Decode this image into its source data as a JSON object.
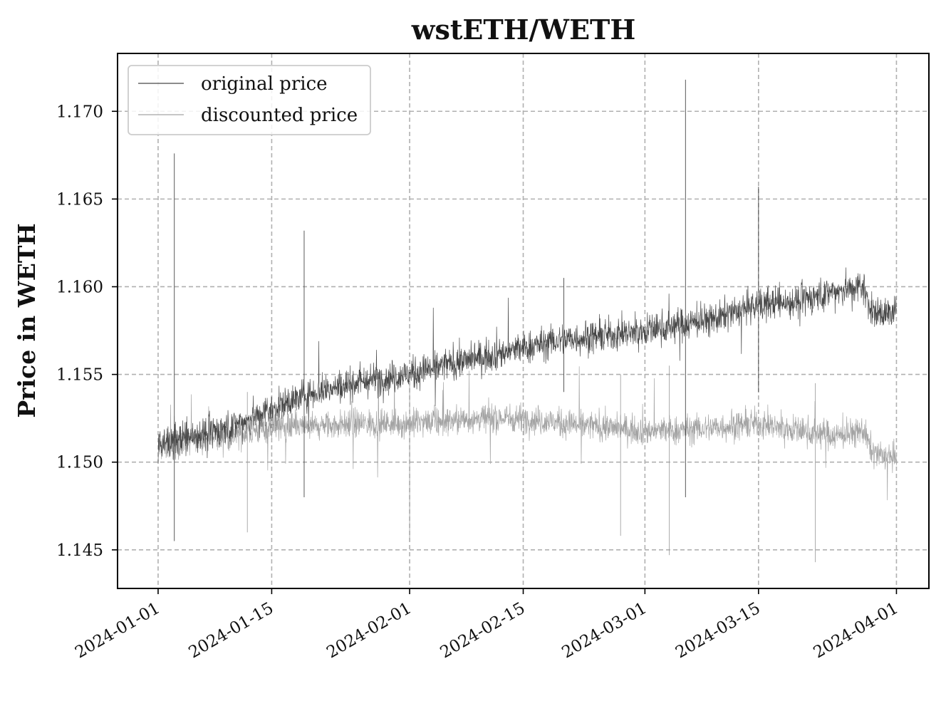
{
  "chart_data": {
    "type": "line",
    "title": "wstETH/WETH",
    "xlabel": "",
    "ylabel": "Price in WETH",
    "x_ticks": [
      "2024-01-01",
      "2024-01-15",
      "2024-02-01",
      "2024-02-15",
      "2024-03-01",
      "2024-03-15",
      "2024-04-01"
    ],
    "y_ticks": [
      "1.145",
      "1.150",
      "1.155",
      "1.160",
      "1.165",
      "1.170"
    ],
    "xlim": [
      "2023-12-27",
      "2024-04-05"
    ],
    "ylim": [
      1.1428,
      1.1733
    ],
    "grid": true,
    "legend_position": "upper-left",
    "series": [
      {
        "name": "original price",
        "color": "#474747",
        "points": [
          [
            "2024-01-01",
            1.151
          ],
          [
            "2024-01-05",
            1.1515
          ],
          [
            "2024-01-10",
            1.152
          ],
          [
            "2024-01-15",
            1.153
          ],
          [
            "2024-01-20",
            1.154
          ],
          [
            "2024-01-25",
            1.1545
          ],
          [
            "2024-02-01",
            1.155
          ],
          [
            "2024-02-05",
            1.1555
          ],
          [
            "2024-02-10",
            1.156
          ],
          [
            "2024-02-15",
            1.1565
          ],
          [
            "2024-02-20",
            1.157
          ],
          [
            "2024-02-25",
            1.1572
          ],
          [
            "2024-03-01",
            1.1575
          ],
          [
            "2024-03-05",
            1.1578
          ],
          [
            "2024-03-10",
            1.1582
          ],
          [
            "2024-03-15",
            1.159
          ],
          [
            "2024-03-20",
            1.1592
          ],
          [
            "2024-03-25",
            1.1598
          ],
          [
            "2024-03-28",
            1.16
          ],
          [
            "2024-03-29",
            1.1585
          ],
          [
            "2024-04-01",
            1.1585
          ]
        ],
        "spikes": [
          [
            "2024-01-03",
            1.1676,
            1.1455
          ],
          [
            "2024-01-19",
            1.1632,
            1.148
          ],
          [
            "2024-02-20",
            1.1605,
            1.154
          ],
          [
            "2024-03-06",
            1.1718,
            1.148
          ],
          [
            "2024-03-15",
            1.1657,
            1.154
          ]
        ]
      },
      {
        "name": "discounted price",
        "color": "#a3a3a3",
        "points": [
          [
            "2024-01-01",
            1.1508
          ],
          [
            "2024-01-05",
            1.1512
          ],
          [
            "2024-01-10",
            1.1515
          ],
          [
            "2024-01-15",
            1.152
          ],
          [
            "2024-01-20",
            1.152
          ],
          [
            "2024-01-25",
            1.1522
          ],
          [
            "2024-02-01",
            1.1522
          ],
          [
            "2024-02-05",
            1.1523
          ],
          [
            "2024-02-10",
            1.1525
          ],
          [
            "2024-02-15",
            1.1525
          ],
          [
            "2024-02-20",
            1.1522
          ],
          [
            "2024-02-25",
            1.152
          ],
          [
            "2024-03-01",
            1.1518
          ],
          [
            "2024-03-05",
            1.1518
          ],
          [
            "2024-03-10",
            1.152
          ],
          [
            "2024-03-15",
            1.1522
          ],
          [
            "2024-03-20",
            1.1518
          ],
          [
            "2024-03-25",
            1.1515
          ],
          [
            "2024-03-28",
            1.1518
          ],
          [
            "2024-03-29",
            1.1505
          ],
          [
            "2024-04-01",
            1.1502
          ]
        ],
        "spikes": [
          [
            "2024-01-12",
            1.154,
            1.146
          ],
          [
            "2024-02-01",
            1.1545,
            1.1455
          ],
          [
            "2024-02-27",
            1.155,
            1.1458
          ],
          [
            "2024-03-04",
            1.1555,
            1.1447
          ],
          [
            "2024-03-22",
            1.1545,
            1.1443
          ]
        ]
      }
    ]
  }
}
